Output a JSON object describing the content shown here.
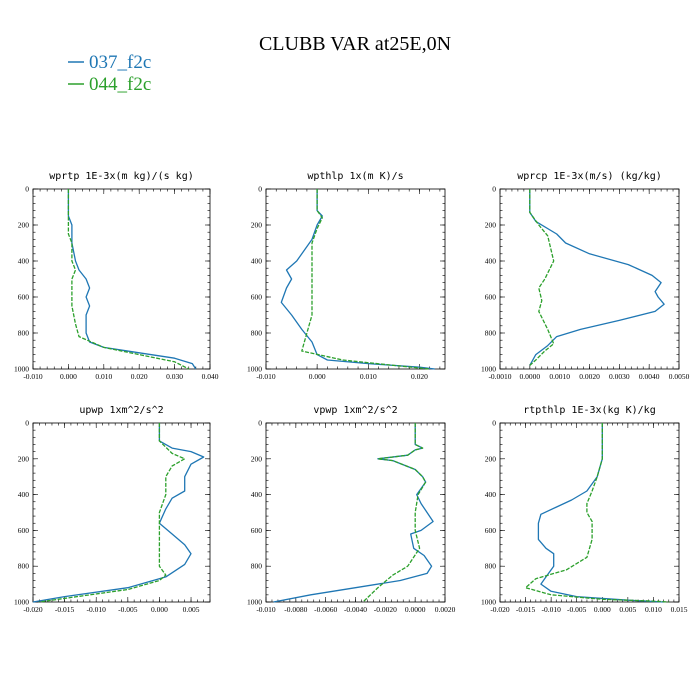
{
  "figure": {
    "title": "CLUBB VAR at25E,0N"
  },
  "legend": [
    {
      "label": "037_f2c",
      "color": "#1f77b4",
      "dash": "solid"
    },
    {
      "label": "044_f2c",
      "color": "#2ca02c",
      "dash": "dashed"
    }
  ],
  "chart_data": [
    {
      "type": "line",
      "title": "wprtp  1E-3x(m kg)/(s kg)",
      "xlim": [
        -0.01,
        0.04
      ],
      "ylim": [
        0,
        1000
      ],
      "y_inverted": true,
      "xticks": [
        "-0.010",
        "0.000",
        "0.010",
        "0.020",
        "0.030",
        "0.040"
      ],
      "xtick_values": [
        -0.01,
        0,
        0.01,
        0.02,
        0.03,
        0.04
      ],
      "yticks": [
        0,
        200,
        400,
        600,
        800,
        1000
      ],
      "series": [
        {
          "name": "037_f2c",
          "x": [
            0,
            0,
            0.001,
            0.001,
            0.002,
            0.003,
            0.005,
            0.006,
            0.005,
            0.006,
            0.005,
            0.005,
            0.006,
            0.01,
            0.02,
            0.03,
            0.035,
            0.036
          ],
          "y": [
            0,
            150,
            200,
            300,
            400,
            450,
            500,
            550,
            600,
            650,
            700,
            800,
            850,
            880,
            910,
            940,
            970,
            1000
          ]
        },
        {
          "name": "044_f2c",
          "x": [
            0,
            0,
            0,
            0.001,
            0.001,
            0.002,
            0.001,
            0.001,
            0.001,
            0.002,
            0.003,
            0.01,
            0.02,
            0.03,
            0.034
          ],
          "y": [
            0,
            150,
            250,
            300,
            400,
            450,
            500,
            600,
            650,
            750,
            820,
            880,
            920,
            960,
            1000
          ]
        }
      ]
    },
    {
      "type": "line",
      "title": "wpthlp  1x(m K)/s",
      "xlim": [
        -0.01,
        0.025
      ],
      "ylim": [
        0,
        1000
      ],
      "y_inverted": true,
      "xticks": [
        "-0.010",
        "0.000",
        "0.010",
        "0.020"
      ],
      "xtick_values": [
        -0.01,
        0,
        0.01,
        0.02
      ],
      "yticks": [
        0,
        200,
        400,
        600,
        800,
        1000
      ],
      "series": [
        {
          "name": "037_f2c",
          "x": [
            0,
            0,
            0.001,
            0,
            -0.001,
            -0.004,
            -0.006,
            -0.005,
            -0.006,
            -0.007,
            -0.005,
            -0.003,
            -0.001,
            0,
            0.002,
            0.01,
            0.02,
            0.023
          ],
          "y": [
            0,
            120,
            150,
            200,
            280,
            400,
            450,
            500,
            550,
            630,
            700,
            780,
            850,
            920,
            950,
            970,
            990,
            1000
          ]
        },
        {
          "name": "044_f2c",
          "x": [
            0,
            0,
            0.001,
            0,
            -0.001,
            -0.001,
            -0.001,
            -0.001,
            -0.002,
            -0.003,
            0.005,
            0.015,
            0.022
          ],
          "y": [
            0,
            120,
            160,
            220,
            300,
            400,
            500,
            700,
            800,
            900,
            950,
            980,
            1000
          ]
        }
      ]
    },
    {
      "type": "line",
      "title": "wprcp  1E-3x(m/s) (kg/kg)",
      "xlim": [
        -0.001,
        0.005
      ],
      "ylim": [
        0,
        1000
      ],
      "y_inverted": true,
      "xticks": [
        "-0.0010",
        "0.0000",
        "0.0010",
        "0.0020",
        "0.0030",
        "0.0040",
        "0.0050"
      ],
      "xtick_values": [
        -0.001,
        0,
        0.001,
        0.002,
        0.003,
        0.004,
        0.005
      ],
      "yticks": [
        0,
        200,
        400,
        600,
        800,
        1000
      ],
      "series": [
        {
          "name": "037_f2c",
          "x": [
            0,
            0,
            0.0002,
            0.0009,
            0.0012,
            0.002,
            0.0033,
            0.0041,
            0.0044,
            0.0042,
            0.0043,
            0.0045,
            0.0042,
            0.003,
            0.0017,
            0.0009,
            0.0006,
            0.0002,
            0
          ],
          "y": [
            0,
            130,
            180,
            250,
            300,
            360,
            420,
            480,
            520,
            570,
            600,
            640,
            680,
            730,
            780,
            820,
            870,
            920,
            980
          ]
        },
        {
          "name": "044_f2c",
          "x": [
            0,
            0,
            0.0003,
            0.0006,
            0.0007,
            0.0008,
            0.0005,
            0.0003,
            0.0004,
            0.0003,
            0.0006,
            0.0008,
            0.0005,
            0.0002,
            0
          ],
          "y": [
            0,
            130,
            200,
            260,
            330,
            400,
            500,
            550,
            620,
            680,
            780,
            860,
            900,
            950,
            980
          ]
        }
      ]
    },
    {
      "type": "line",
      "title": "upwp  1xm^2/s^2",
      "xlim": [
        -0.02,
        0.008
      ],
      "ylim": [
        0,
        1000
      ],
      "y_inverted": true,
      "xticks": [
        "-0.020",
        "-0.015",
        "-0.010",
        "-0.005",
        "0.000",
        "0.005"
      ],
      "xtick_values": [
        -0.02,
        -0.015,
        -0.01,
        -0.005,
        0,
        0.005
      ],
      "yticks": [
        0,
        200,
        400,
        600,
        800,
        1000
      ],
      "series": [
        {
          "name": "037_f2c",
          "x": [
            0,
            0,
            0.002,
            0.005,
            0.007,
            0.005,
            0.004,
            0.004,
            0.002,
            0.001,
            0,
            0.002,
            0.004,
            0.005,
            0.004,
            0.001,
            -0.005,
            -0.015,
            -0.02
          ],
          "y": [
            0,
            100,
            140,
            160,
            190,
            230,
            300,
            380,
            420,
            480,
            560,
            620,
            680,
            730,
            790,
            860,
            920,
            970,
            1000
          ]
        },
        {
          "name": "044_f2c",
          "x": [
            0,
            0,
            0.002,
            0.004,
            0.002,
            0.001,
            0.001,
            0,
            0,
            0,
            0,
            0.001,
            0,
            -0.005,
            -0.015,
            -0.019
          ],
          "y": [
            0,
            100,
            170,
            200,
            240,
            300,
            400,
            500,
            600,
            700,
            800,
            850,
            880,
            930,
            980,
            1000
          ]
        }
      ]
    },
    {
      "type": "line",
      "title": "vpwp  1xm^2/s^2",
      "xlim": [
        -0.01,
        0.002
      ],
      "ylim": [
        0,
        1000
      ],
      "y_inverted": true,
      "xticks": [
        "-0.010",
        "-0.0080",
        "-0.0060",
        "-0.0040",
        "-0.0020",
        "0.0000",
        "0.0020"
      ],
      "xtick_values": [
        -0.01,
        -0.008,
        -0.006,
        -0.004,
        -0.002,
        0,
        0.002
      ],
      "yticks": [
        0,
        200,
        400,
        600,
        800,
        1000
      ],
      "series": [
        {
          "name": "037_f2c",
          "x": [
            0,
            0,
            0.0005,
            0,
            -0.0005,
            -0.0025,
            -0.0015,
            0,
            0.0005,
            0.0007,
            0.0001,
            0.0004,
            0.0012,
            0.0004,
            -0.0003,
            -0.0001,
            0.0006,
            0.0011,
            0.0008,
            -0.001,
            -0.004,
            -0.007,
            -0.0095
          ],
          "y": [
            0,
            120,
            140,
            150,
            180,
            200,
            210,
            260,
            300,
            330,
            400,
            450,
            550,
            600,
            620,
            700,
            740,
            800,
            840,
            880,
            920,
            960,
            1000
          ]
        },
        {
          "name": "044_f2c",
          "x": [
            0,
            0,
            0.0005,
            0,
            -0.0005,
            -0.0025,
            -0.0015,
            0,
            0.0005,
            0.0007,
            0.0002,
            0,
            0,
            0.0003,
            -0.0005,
            -0.0015,
            -0.0025,
            -0.0035
          ],
          "y": [
            0,
            120,
            140,
            150,
            180,
            200,
            210,
            260,
            300,
            330,
            400,
            500,
            600,
            700,
            800,
            850,
            920,
            1000
          ]
        }
      ]
    },
    {
      "type": "line",
      "title": "rtpthlp  1E-3x(kg K)/kg",
      "xlim": [
        -0.02,
        0.015
      ],
      "ylim": [
        0,
        1000
      ],
      "y_inverted": true,
      "xticks": [
        "-0.020",
        "-0.015",
        "-0.010",
        "-0.005",
        "0.000",
        "0.005",
        "0.010",
        "0.015"
      ],
      "xtick_values": [
        -0.02,
        -0.015,
        -0.01,
        -0.005,
        0,
        0.005,
        0.01,
        0.015
      ],
      "yticks": [
        0,
        200,
        400,
        600,
        800,
        1000
      ],
      "series": [
        {
          "name": "037_f2c",
          "x": [
            0,
            0,
            -0.001,
            -0.003,
            -0.006,
            -0.009,
            -0.012,
            -0.0125,
            -0.0125,
            -0.011,
            -0.0095,
            -0.0095,
            -0.011,
            -0.012,
            -0.01,
            -0.005,
            0.005,
            0.012
          ],
          "y": [
            0,
            200,
            300,
            380,
            430,
            470,
            510,
            560,
            650,
            700,
            730,
            800,
            860,
            900,
            940,
            970,
            990,
            1000
          ]
        },
        {
          "name": "044_f2c",
          "x": [
            0,
            0,
            -0.001,
            -0.002,
            -0.003,
            -0.003,
            -0.002,
            -0.002,
            -0.003,
            -0.007,
            -0.013,
            -0.015,
            -0.01,
            0,
            0.01,
            0.013
          ],
          "y": [
            0,
            200,
            300,
            380,
            450,
            500,
            550,
            650,
            750,
            820,
            870,
            920,
            960,
            985,
            995,
            1000
          ]
        }
      ]
    }
  ]
}
